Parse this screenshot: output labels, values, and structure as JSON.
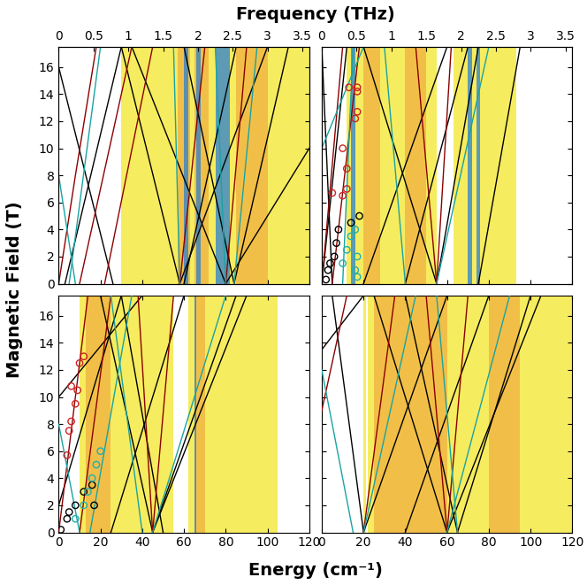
{
  "labels": {
    "xlabel": "Energy (cm⁻¹)",
    "x2label": "Frequency (THz)",
    "ylabel": "Magnetic Field (T)"
  },
  "chart_data": [
    {
      "type": "line",
      "xlim": [
        0,
        120
      ],
      "ylim": [
        0,
        17.5
      ],
      "yticks": [
        0,
        2,
        4,
        6,
        8,
        10,
        12,
        14,
        16
      ],
      "x2lim": [
        0,
        3.5975
      ],
      "x2ticks": [
        0,
        0.5,
        1,
        1.5,
        2,
        2.5,
        3,
        3.5
      ],
      "bands": [
        {
          "range": [
            30,
            120
          ],
          "color": "#f3e62a"
        },
        {
          "range": [
            57,
            63
          ],
          "color": "#f0b040"
        },
        {
          "range": [
            65,
            72
          ],
          "color": "#f0b040"
        },
        {
          "range": [
            85,
            100
          ],
          "color": "#f0b040"
        },
        {
          "range": [
            60,
            62
          ],
          "color": "#2a7fd0"
        },
        {
          "range": [
            66,
            68
          ],
          "color": "#2a7fd0"
        },
        {
          "range": [
            75,
            82
          ],
          "color": "#2a7fd0"
        }
      ],
      "series": [
        {
          "type": "line",
          "color": "#000000",
          "x": [
            0,
            26
          ],
          "y": [
            16,
            0
          ]
        },
        {
          "type": "line",
          "color": "#000000",
          "x": [
            3,
            30
          ],
          "y": [
            0,
            17.5
          ]
        },
        {
          "type": "line",
          "color": "#000000",
          "x": [
            58,
            100
          ],
          "y": [
            0,
            17.5
          ]
        },
        {
          "type": "line",
          "color": "#000000",
          "x": [
            58,
            30
          ],
          "y": [
            0,
            17.5
          ]
        },
        {
          "type": "line",
          "color": "#000000",
          "x": [
            80,
            120
          ],
          "y": [
            0,
            10
          ]
        },
        {
          "type": "line",
          "color": "#000000",
          "x": [
            80,
            35
          ],
          "y": [
            0,
            17.5
          ]
        },
        {
          "type": "line",
          "color": "#000000",
          "x": [
            84,
            60
          ],
          "y": [
            0,
            17.5
          ]
        },
        {
          "type": "line",
          "color": "#000000",
          "x": [
            84,
            110
          ],
          "y": [
            0,
            17.5
          ]
        },
        {
          "type": "line",
          "color": "#000000",
          "x": [
            60,
            85
          ],
          "y": [
            0,
            17.5
          ]
        },
        {
          "type": "line",
          "color": "#8b0000",
          "x": [
            0,
            8,
            18
          ],
          "y": [
            0,
            8,
            17.5
          ]
        },
        {
          "type": "line",
          "color": "#8b0000",
          "x": [
            10,
            35
          ],
          "y": [
            0,
            17.5
          ]
        },
        {
          "type": "line",
          "color": "#8b0000",
          "x": [
            22,
            45
          ],
          "y": [
            0,
            17.5
          ]
        },
        {
          "type": "line",
          "color": "#8b0000",
          "x": [
            58,
            70
          ],
          "y": [
            0,
            17.5
          ]
        },
        {
          "type": "line",
          "color": "#8b0000",
          "x": [
            80,
            90
          ],
          "y": [
            0,
            17.5
          ]
        },
        {
          "type": "line",
          "color": "#1aa3a3",
          "x": [
            0,
            8
          ],
          "y": [
            8,
            0
          ]
        },
        {
          "type": "line",
          "color": "#1aa3a3",
          "x": [
            5,
            20
          ],
          "y": [
            0,
            17.5
          ]
        },
        {
          "type": "line",
          "color": "#1aa3a3",
          "x": [
            58,
            55
          ],
          "y": [
            0,
            17.5
          ]
        },
        {
          "type": "line",
          "color": "#1aa3a3",
          "x": [
            80,
            75
          ],
          "y": [
            0,
            17.5
          ]
        },
        {
          "type": "line",
          "color": "#1aa3a3",
          "x": [
            84,
            95
          ],
          "y": [
            0,
            17.5
          ]
        }
      ]
    },
    {
      "type": "line",
      "xlim": [
        0,
        120
      ],
      "ylim": [
        0,
        17.5
      ],
      "x2lim": [
        0,
        3.5975
      ],
      "x2ticks": [
        0,
        0.5,
        1,
        1.5,
        2,
        2.5,
        3,
        3.5
      ],
      "bands": [
        {
          "range": [
            12,
            55
          ],
          "color": "#f3e62a"
        },
        {
          "range": [
            63,
            93
          ],
          "color": "#f3e62a"
        },
        {
          "range": [
            20,
            28
          ],
          "color": "#f0b040"
        },
        {
          "range": [
            40,
            50
          ],
          "color": "#f0b040"
        },
        {
          "range": [
            14,
            16
          ],
          "color": "#2a7fd0"
        },
        {
          "range": [
            70,
            72
          ],
          "color": "#2a7fd0"
        },
        {
          "range": [
            74,
            76
          ],
          "color": "#2a7fd0"
        }
      ],
      "series": [
        {
          "type": "line",
          "color": "#000000",
          "x": [
            5,
            0
          ],
          "y": [
            0,
            17.5
          ]
        },
        {
          "type": "line",
          "color": "#000000",
          "x": [
            0,
            12
          ],
          "y": [
            0,
            17.5
          ]
        },
        {
          "type": "line",
          "color": "#000000",
          "x": [
            20,
            60
          ],
          "y": [
            0,
            17.5
          ]
        },
        {
          "type": "line",
          "color": "#000000",
          "x": [
            55,
            20
          ],
          "y": [
            0,
            17.5
          ]
        },
        {
          "type": "line",
          "color": "#000000",
          "x": [
            55,
            75
          ],
          "y": [
            0,
            17.5
          ]
        },
        {
          "type": "line",
          "color": "#000000",
          "x": [
            40,
            70
          ],
          "y": [
            0,
            17.5
          ]
        },
        {
          "type": "line",
          "color": "#000000",
          "x": [
            75,
            95
          ],
          "y": [
            0,
            17.5
          ]
        },
        {
          "type": "line",
          "color": "#8b0000",
          "x": [
            0,
            10
          ],
          "y": [
            0,
            17.5
          ]
        },
        {
          "type": "line",
          "color": "#8b0000",
          "x": [
            5,
            18
          ],
          "y": [
            0,
            17.5
          ]
        },
        {
          "type": "line",
          "color": "#8b0000",
          "x": [
            55,
            45
          ],
          "y": [
            0,
            17.5
          ]
        },
        {
          "type": "line",
          "color": "#8b0000",
          "x": [
            55,
            62
          ],
          "y": [
            0,
            17.5
          ]
        },
        {
          "type": "line",
          "color": "#1aa3a3",
          "x": [
            0,
            20
          ],
          "y": [
            10,
            17.5
          ]
        },
        {
          "type": "line",
          "color": "#1aa3a3",
          "x": [
            10,
            15
          ],
          "y": [
            0,
            17.5
          ]
        },
        {
          "type": "line",
          "color": "#1aa3a3",
          "x": [
            55,
            80
          ],
          "y": [
            0,
            17.5
          ]
        },
        {
          "type": "line",
          "color": "#1aa3a3",
          "x": [
            40,
            30
          ],
          "y": [
            0,
            17.5
          ]
        },
        {
          "type": "scatter",
          "marker": "o",
          "color": "#cc2222",
          "x": [
            5,
            10,
            12,
            12,
            10,
            16,
            17,
            17,
            13,
            17
          ],
          "y": [
            6.7,
            6.5,
            7,
            8.5,
            10,
            12.2,
            12.7,
            14.2,
            14.5,
            14.5
          ]
        },
        {
          "type": "scatter",
          "marker": "o",
          "color": "#000000",
          "x": [
            2,
            3,
            4,
            6,
            7,
            8,
            14,
            18
          ],
          "y": [
            0.3,
            1,
            1.5,
            2,
            3,
            4,
            4.5,
            5
          ]
        },
        {
          "type": "scatter",
          "marker": "o",
          "color": "#20b0b0",
          "x": [
            10,
            12,
            14,
            16,
            17,
            16,
            17
          ],
          "y": [
            1.5,
            2.5,
            3.5,
            4,
            0.5,
            1,
            2
          ]
        }
      ]
    },
    {
      "type": "line",
      "xlim": [
        0,
        120
      ],
      "ylim": [
        0,
        17.5
      ],
      "xticks": [
        0,
        20,
        40,
        60,
        80,
        100,
        120
      ],
      "yticks": [
        0,
        2,
        4,
        6,
        8,
        10,
        12,
        14,
        16
      ],
      "bands": [
        {
          "range": [
            10,
            55
          ],
          "color": "#f3e62a"
        },
        {
          "range": [
            62,
            105
          ],
          "color": "#f3e62a"
        },
        {
          "range": [
            13,
            25
          ],
          "color": "#f0b040"
        },
        {
          "range": [
            65,
            70
          ],
          "color": "#f0b040"
        },
        {
          "range": [
            65,
            66
          ],
          "color": "#2a7fd0"
        }
      ],
      "series": [
        {
          "type": "line",
          "color": "#000000",
          "x": [
            0,
            40
          ],
          "y": [
            10,
            17.5
          ]
        },
        {
          "type": "line",
          "color": "#000000",
          "x": [
            0,
            30
          ],
          "y": [
            2,
            17.5
          ]
        },
        {
          "type": "line",
          "color": "#000000",
          "x": [
            45,
            20
          ],
          "y": [
            0,
            17.5
          ]
        },
        {
          "type": "line",
          "color": "#000000",
          "x": [
            45,
            85
          ],
          "y": [
            0,
            17.5
          ]
        },
        {
          "type": "line",
          "color": "#000000",
          "x": [
            25,
            60
          ],
          "y": [
            0,
            17.5
          ]
        },
        {
          "type": "line",
          "color": "#000000",
          "x": [
            50,
            30
          ],
          "y": [
            0,
            17.5
          ]
        },
        {
          "type": "line",
          "color": "#000000",
          "x": [
            45,
            90
          ],
          "y": [
            0,
            17.5
          ]
        },
        {
          "type": "line",
          "color": "#8b0000",
          "x": [
            0,
            14
          ],
          "y": [
            0,
            17.5
          ]
        },
        {
          "type": "line",
          "color": "#8b0000",
          "x": [
            10,
            25
          ],
          "y": [
            0,
            17.5
          ]
        },
        {
          "type": "line",
          "color": "#8b0000",
          "x": [
            45,
            55
          ],
          "y": [
            0,
            17.5
          ]
        },
        {
          "type": "line",
          "color": "#8b0000",
          "x": [
            45,
            38
          ],
          "y": [
            0,
            17.5
          ]
        },
        {
          "type": "line",
          "color": "#1aa3a3",
          "x": [
            0,
            10
          ],
          "y": [
            8,
            0
          ]
        },
        {
          "type": "line",
          "color": "#1aa3a3",
          "x": [
            15,
            35
          ],
          "y": [
            0,
            17.5
          ]
        },
        {
          "type": "line",
          "color": "#1aa3a3",
          "x": [
            45,
            80
          ],
          "y": [
            0,
            17.5
          ]
        },
        {
          "type": "line",
          "color": "#1aa3a3",
          "x": [
            40,
            25
          ],
          "y": [
            0,
            17.5
          ]
        },
        {
          "type": "scatter",
          "marker": "o",
          "color": "#cc2222",
          "x": [
            4,
            5,
            6,
            8,
            9,
            6,
            10,
            12
          ],
          "y": [
            5.7,
            7.5,
            8.2,
            9.5,
            10.5,
            10.8,
            12.5,
            13
          ]
        },
        {
          "type": "scatter",
          "marker": "o",
          "color": "#000000",
          "x": [
            1,
            4,
            5,
            8,
            12,
            16,
            17
          ],
          "y": [
            0.2,
            1,
            1.5,
            2,
            3,
            3.5,
            2
          ]
        },
        {
          "type": "scatter",
          "marker": "o",
          "color": "#20b0b0",
          "x": [
            8,
            12,
            14,
            16,
            18,
            20
          ],
          "y": [
            1,
            2,
            3,
            4,
            5,
            6
          ]
        }
      ]
    },
    {
      "type": "line",
      "xlim": [
        0,
        120
      ],
      "ylim": [
        0,
        17.5
      ],
      "xticks": [
        0,
        20,
        40,
        60,
        80,
        100,
        120
      ],
      "bands": [
        {
          "range": [
            20,
            21
          ],
          "color": "#f3e62a"
        },
        {
          "range": [
            22,
            120
          ],
          "color": "#f3e62a"
        },
        {
          "range": [
            25,
            60
          ],
          "color": "#f0b040"
        },
        {
          "range": [
            80,
            95
          ],
          "color": "#f0b040"
        }
      ],
      "series": [
        {
          "type": "line",
          "color": "#000000",
          "x": [
            0,
            20
          ],
          "y": [
            13.5,
            17.5
          ]
        },
        {
          "type": "line",
          "color": "#000000",
          "x": [
            20,
            60
          ],
          "y": [
            0,
            17.5
          ]
        },
        {
          "type": "line",
          "color": "#000000",
          "x": [
            20,
            5
          ],
          "y": [
            0,
            17.5
          ]
        },
        {
          "type": "line",
          "color": "#000000",
          "x": [
            60,
            25
          ],
          "y": [
            0,
            17.5
          ]
        },
        {
          "type": "line",
          "color": "#000000",
          "x": [
            60,
            105
          ],
          "y": [
            0,
            17.5
          ]
        },
        {
          "type": "line",
          "color": "#000000",
          "x": [
            40,
            80
          ],
          "y": [
            0,
            17.5
          ]
        },
        {
          "type": "line",
          "color": "#000000",
          "x": [
            65,
            40
          ],
          "y": [
            0,
            17.5
          ]
        },
        {
          "type": "line",
          "color": "#000000",
          "x": [
            65,
            100
          ],
          "y": [
            0,
            17.5
          ]
        },
        {
          "type": "line",
          "color": "#8b0000",
          "x": [
            0,
            12
          ],
          "y": [
            9,
            17.5
          ]
        },
        {
          "type": "line",
          "color": "#8b0000",
          "x": [
            20,
            35
          ],
          "y": [
            0,
            17.5
          ]
        },
        {
          "type": "line",
          "color": "#8b0000",
          "x": [
            60,
            70
          ],
          "y": [
            0,
            17.5
          ]
        },
        {
          "type": "line",
          "color": "#8b0000",
          "x": [
            60,
            50
          ],
          "y": [
            0,
            17.5
          ]
        },
        {
          "type": "line",
          "color": "#1aa3a3",
          "x": [
            0,
            15
          ],
          "y": [
            12,
            0
          ]
        },
        {
          "type": "line",
          "color": "#1aa3a3",
          "x": [
            20,
            45
          ],
          "y": [
            0,
            17.5
          ]
        },
        {
          "type": "line",
          "color": "#1aa3a3",
          "x": [
            60,
            90
          ],
          "y": [
            0,
            17.5
          ]
        },
        {
          "type": "line",
          "color": "#1aa3a3",
          "x": [
            65,
            55
          ],
          "y": [
            0,
            17.5
          ]
        }
      ]
    }
  ]
}
